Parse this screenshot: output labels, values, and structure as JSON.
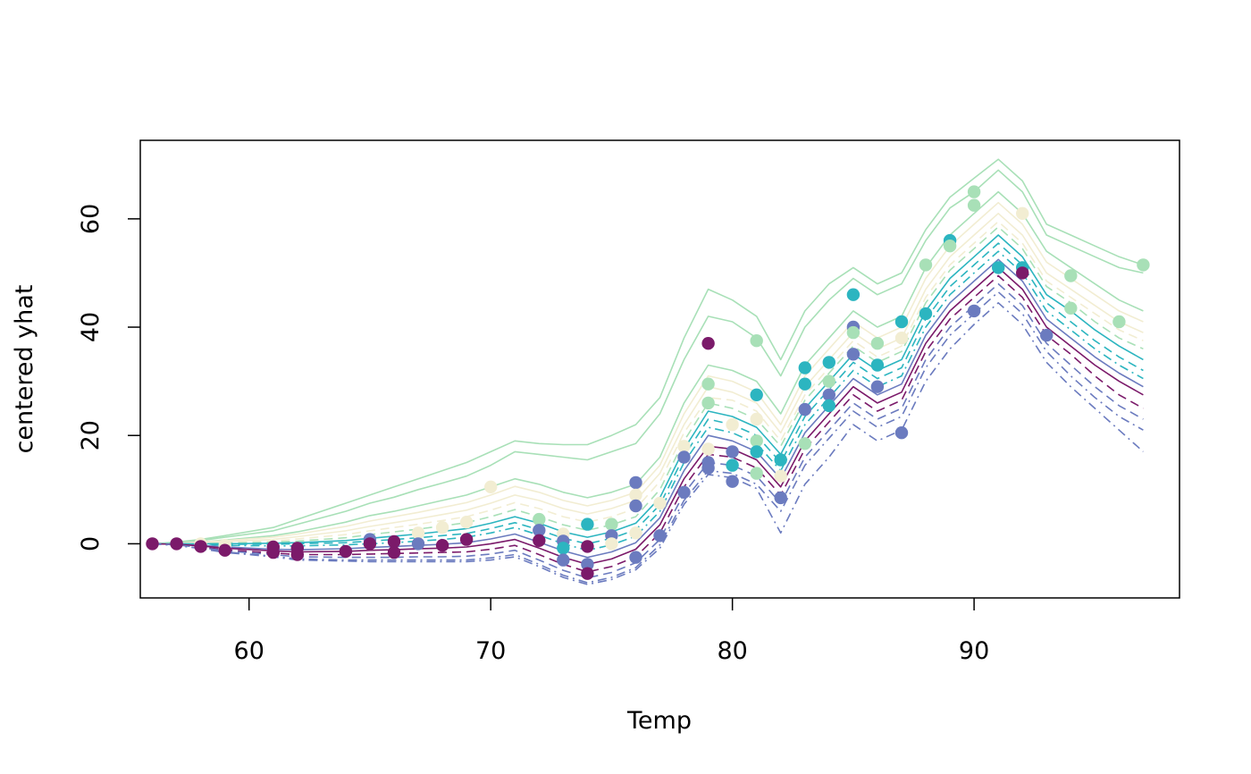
{
  "chart_data": {
    "type": "line",
    "title": "",
    "xlabel": "Temp",
    "ylabel": "centered yhat",
    "xlim": [
      55.5,
      98.5
    ],
    "ylim": [
      -10,
      74.5
    ],
    "x_ticks": [
      "60",
      "70",
      "80",
      "90"
    ],
    "x_tick_values": [
      60,
      70,
      80,
      90
    ],
    "y_ticks": [
      "0",
      "20",
      "40",
      "60"
    ],
    "y_tick_values": [
      0,
      20,
      40,
      60
    ],
    "grid": false,
    "legend": "none",
    "palette": [
      "#7B1A6A",
      "#6B7BBF",
      "#2CB5C0",
      "#A8E0B7",
      "#F2EDD2"
    ],
    "x": [
      56,
      57,
      58,
      59,
      61,
      62,
      64,
      65,
      66,
      67,
      68,
      69,
      70,
      71,
      72,
      73,
      74,
      75,
      76,
      77,
      78,
      79,
      80,
      81,
      82,
      83,
      84,
      85,
      86,
      87,
      88,
      89,
      90,
      91,
      92,
      93,
      94,
      95,
      96,
      97
    ],
    "series": [
      {
        "color": "#A8E0B7",
        "style": "solid",
        "values": [
          0,
          0.3,
          0.8,
          1.5,
          3,
          4.5,
          7.5,
          9,
          10.5,
          12,
          13.5,
          15,
          17,
          19,
          18.5,
          18.3,
          18.3,
          20,
          22,
          27,
          38,
          47,
          45,
          42,
          34,
          43,
          48,
          51,
          48,
          50,
          58,
          64,
          67.5,
          71,
          67,
          59,
          57,
          55,
          53,
          51.5
        ]
      },
      {
        "color": "#A8E0B7",
        "style": "solid",
        "values": [
          0,
          0.2,
          0.6,
          1.2,
          2.4,
          3.6,
          6,
          7.5,
          8.6,
          10,
          11.2,
          12.5,
          14.5,
          17,
          16.5,
          16,
          15.5,
          17,
          18.5,
          24,
          34,
          42,
          41,
          38,
          31,
          40,
          45,
          49,
          46,
          48,
          56,
          62,
          65,
          69,
          65,
          57,
          55,
          53,
          51,
          50
        ]
      },
      {
        "color": "#A8E0B7",
        "style": "solid",
        "values": [
          0,
          0.1,
          0.3,
          0.7,
          1.5,
          2.2,
          4,
          5.2,
          6,
          7,
          8,
          9,
          10.5,
          12,
          11,
          9.5,
          8.5,
          9.5,
          11,
          16,
          26,
          33,
          32,
          30,
          24,
          33,
          38,
          43,
          40,
          42,
          51,
          57,
          61,
          65,
          61,
          54,
          51,
          48,
          45,
          43
        ]
      },
      {
        "color": "#F2EDD2",
        "style": "solid",
        "values": [
          0,
          0.1,
          0.3,
          0.6,
          1.2,
          1.8,
          3.2,
          4.2,
          5,
          5.8,
          6.7,
          7.6,
          9,
          10.6,
          9.5,
          8,
          7,
          8,
          9.5,
          14.5,
          24,
          31,
          30,
          28,
          22,
          31,
          36,
          41,
          38,
          40,
          49,
          55,
          59,
          63,
          59,
          52,
          49,
          46,
          43,
          41
        ]
      },
      {
        "color": "#F2EDD2",
        "style": "solid",
        "values": [
          0,
          0,
          0.2,
          0.4,
          0.8,
          1.3,
          2.4,
          3.2,
          3.9,
          4.6,
          5.4,
          6.2,
          7.5,
          9,
          8,
          6.5,
          5.5,
          6.5,
          8,
          13,
          22,
          29,
          28,
          26,
          20.5,
          29,
          34,
          39,
          36,
          38,
          47,
          53,
          57,
          61,
          57,
          50,
          47,
          44,
          41,
          39
        ]
      },
      {
        "color": "#F2EDD2",
        "style": "dashed",
        "values": [
          0,
          0,
          0.1,
          0.2,
          0.5,
          0.9,
          1.7,
          2.4,
          3,
          3.6,
          4.3,
          5,
          6.2,
          7.6,
          6.5,
          5,
          4,
          5,
          6.5,
          11.5,
          20.5,
          27,
          26.5,
          24.5,
          19,
          27.5,
          32.5,
          37.5,
          34.5,
          36.5,
          45.5,
          51.5,
          55.5,
          59.5,
          55.5,
          48.5,
          45.5,
          42.5,
          39.5,
          37.5
        ]
      },
      {
        "color": "#A8E0B7",
        "style": "dashed",
        "values": [
          0,
          0,
          0,
          0.1,
          0.3,
          0.5,
          1.1,
          1.7,
          2.2,
          2.7,
          3.3,
          3.9,
          5,
          6.3,
          5,
          3.5,
          2.5,
          3.5,
          5,
          10,
          19,
          26,
          25,
          23,
          18,
          26.5,
          31.5,
          36.5,
          33.5,
          35.5,
          44.5,
          50.5,
          54.5,
          58.5,
          54.5,
          47.5,
          44.5,
          41,
          38,
          36
        ]
      },
      {
        "color": "#2CB5C0",
        "style": "solid",
        "values": [
          0,
          0,
          0,
          0,
          0.1,
          0.2,
          0.6,
          1,
          1.4,
          1.8,
          2.3,
          2.8,
          3.8,
          5,
          3.8,
          2.2,
          1.2,
          2.2,
          3.8,
          8.5,
          17.5,
          24.5,
          23.5,
          21.5,
          16.5,
          25,
          30,
          35,
          32,
          34,
          43,
          49,
          53,
          57,
          53,
          46,
          43,
          39.5,
          36.5,
          34
        ]
      },
      {
        "color": "#2CB5C0",
        "style": "dashed",
        "values": [
          0,
          0,
          -0.1,
          -0.1,
          -0.1,
          0,
          0.2,
          0.5,
          0.8,
          1.1,
          1.5,
          1.9,
          2.8,
          3.9,
          2.6,
          1,
          0,
          1,
          2.6,
          7.2,
          16.2,
          23,
          22,
          20,
          15,
          23.5,
          28.5,
          33.5,
          30.5,
          32.5,
          41.5,
          47.5,
          51.5,
          55.5,
          51.5,
          44.5,
          41,
          37.5,
          34.5,
          32
        ]
      },
      {
        "color": "#2CB5C0",
        "style": "dashdot",
        "values": [
          0,
          0,
          -0.1,
          -0.3,
          -0.4,
          -0.4,
          -0.2,
          0,
          0.2,
          0.5,
          0.8,
          1.2,
          2,
          3,
          1.6,
          0,
          -1.2,
          -0.2,
          1.4,
          6,
          15,
          21.5,
          20.5,
          18.5,
          13.5,
          22,
          27,
          32,
          29,
          31,
          40,
          46,
          50,
          54,
          50,
          43,
          39.5,
          36,
          33,
          30.5
        ]
      },
      {
        "color": "#6B7BBF",
        "style": "solid",
        "values": [
          0,
          -0.1,
          -0.3,
          -0.6,
          -1,
          -1.1,
          -0.9,
          -0.7,
          -0.5,
          -0.3,
          -0.1,
          0.2,
          0.9,
          1.8,
          0.3,
          -1.3,
          -2.5,
          -1.5,
          0.2,
          4.8,
          13.5,
          20,
          19,
          17,
          12,
          20.5,
          25.5,
          30.5,
          27.5,
          29.5,
          38.5,
          44.5,
          48.5,
          52.5,
          48.5,
          41.5,
          38,
          34.5,
          31.5,
          29
        ]
      },
      {
        "color": "#7B1A6A",
        "style": "solid",
        "values": [
          0,
          -0.1,
          -0.4,
          -0.8,
          -1.3,
          -1.5,
          -1.4,
          -1.2,
          -1.1,
          -0.9,
          -0.8,
          -0.6,
          0,
          0.8,
          -0.8,
          -2.5,
          -3.8,
          -2.8,
          -1,
          3.5,
          12,
          18,
          17.5,
          15.5,
          10.5,
          19,
          24,
          29,
          26,
          28,
          37,
          43,
          47,
          51,
          47,
          40,
          36.5,
          33,
          30,
          27.5
        ]
      },
      {
        "color": "#7B1A6A",
        "style": "dashed",
        "values": [
          0,
          -0.2,
          -0.6,
          -1.1,
          -1.7,
          -2,
          -2,
          -1.9,
          -1.8,
          -1.7,
          -1.6,
          -1.5,
          -1,
          -0.3,
          -2,
          -3.8,
          -5.2,
          -4.2,
          -2.4,
          2,
          10.5,
          16.5,
          16,
          14,
          9,
          17.5,
          22.5,
          27.5,
          24.5,
          26.5,
          35.5,
          41.5,
          45.5,
          49.5,
          45.5,
          38.5,
          35,
          31,
          27.5,
          25
        ]
      },
      {
        "color": "#6B7BBF",
        "style": "dashed",
        "values": [
          0,
          -0.2,
          -0.7,
          -1.3,
          -2,
          -2.4,
          -2.5,
          -2.5,
          -2.5,
          -2.4,
          -2.4,
          -2.3,
          -1.9,
          -1.2,
          -3,
          -4.9,
          -6.3,
          -5.3,
          -3.5,
          0.8,
          9.3,
          15,
          14.5,
          12.5,
          7.5,
          16,
          21,
          26,
          23,
          25,
          34,
          40,
          44,
          48,
          44,
          37,
          33,
          29,
          25.5,
          23
        ]
      },
      {
        "color": "#6B7BBF",
        "style": "dashdot",
        "values": [
          0,
          -0.3,
          -0.8,
          -1.5,
          -2.3,
          -2.8,
          -3,
          -3,
          -3,
          -3,
          -3,
          -3,
          -2.6,
          -2,
          -3.8,
          -5.8,
          -7.2,
          -6.2,
          -4.4,
          -0.2,
          8,
          13.5,
          13,
          11,
          6,
          14.5,
          19.5,
          24.5,
          21.5,
          23.5,
          32.5,
          38.5,
          42.5,
          46.5,
          42.5,
          35.5,
          31,
          27,
          23.5,
          21
        ]
      },
      {
        "color": "#6B7BBF",
        "style": "dashdot",
        "values": [
          0,
          -0.3,
          -0.9,
          -1.6,
          -2.4,
          -3,
          -3.2,
          -3.3,
          -3.3,
          -3.3,
          -3.3,
          -3.3,
          -3,
          -2.4,
          -4.2,
          -6.2,
          -7.5,
          -6.6,
          -4.8,
          -0.8,
          7.3,
          12.8,
          12.2,
          10.2,
          2,
          11,
          16,
          22,
          19,
          21,
          30,
          36,
          40.5,
          44.5,
          40.5,
          33.5,
          29,
          25,
          21,
          17
        ]
      }
    ],
    "points": [
      {
        "x": 56,
        "y": 0,
        "color": "#7B1A6A"
      },
      {
        "x": 57,
        "y": 0,
        "color": "#7B1A6A"
      },
      {
        "x": 58,
        "y": 0,
        "color": "#F2EDD2"
      },
      {
        "x": 58,
        "y": -0.5,
        "color": "#7B1A6A"
      },
      {
        "x": 59,
        "y": -0.3,
        "color": "#F2EDD2"
      },
      {
        "x": 59,
        "y": -1.2,
        "color": "#7B1A6A"
      },
      {
        "x": 61,
        "y": -0.6,
        "color": "#7B1A6A"
      },
      {
        "x": 61,
        "y": -1.6,
        "color": "#7B1A6A"
      },
      {
        "x": 62,
        "y": -0.8,
        "color": "#7B1A6A"
      },
      {
        "x": 62,
        "y": -2,
        "color": "#7B1A6A"
      },
      {
        "x": 64,
        "y": -1.4,
        "color": "#7B1A6A"
      },
      {
        "x": 65,
        "y": 0.8,
        "color": "#6B7BBF"
      },
      {
        "x": 65,
        "y": 0,
        "color": "#7B1A6A"
      },
      {
        "x": 66,
        "y": 0.4,
        "color": "#7B1A6A"
      },
      {
        "x": 66,
        "y": -1.6,
        "color": "#7B1A6A"
      },
      {
        "x": 67,
        "y": 2,
        "color": "#F2EDD2"
      },
      {
        "x": 67,
        "y": 0,
        "color": "#6B7BBF"
      },
      {
        "x": 68,
        "y": 3,
        "color": "#F2EDD2"
      },
      {
        "x": 68,
        "y": -0.3,
        "color": "#7B1A6A"
      },
      {
        "x": 69,
        "y": 0.8,
        "color": "#7B1A6A"
      },
      {
        "x": 69,
        "y": 4,
        "color": "#F2EDD2"
      },
      {
        "x": 70,
        "y": 10.5,
        "color": "#F2EDD2"
      },
      {
        "x": 72,
        "y": 4.5,
        "color": "#A8E0B7"
      },
      {
        "x": 72,
        "y": 2.5,
        "color": "#6B7BBF"
      },
      {
        "x": 72,
        "y": 0.6,
        "color": "#7B1A6A"
      },
      {
        "x": 73,
        "y": 1.8,
        "color": "#F2EDD2"
      },
      {
        "x": 73,
        "y": 0.5,
        "color": "#6B7BBF"
      },
      {
        "x": 73,
        "y": -0.8,
        "color": "#2CB5C0"
      },
      {
        "x": 73,
        "y": -3,
        "color": "#6B7BBF"
      },
      {
        "x": 74,
        "y": 3.6,
        "color": "#2CB5C0"
      },
      {
        "x": 74,
        "y": -0.5,
        "color": "#7B1A6A"
      },
      {
        "x": 74,
        "y": -3.8,
        "color": "#6B7BBF"
      },
      {
        "x": 74,
        "y": -5.5,
        "color": "#7B1A6A"
      },
      {
        "x": 75,
        "y": 3.6,
        "color": "#A8E0B7"
      },
      {
        "x": 75,
        "y": 1.5,
        "color": "#6B7BBF"
      },
      {
        "x": 75,
        "y": 0,
        "color": "#F2EDD2"
      },
      {
        "x": 76,
        "y": 11.3,
        "color": "#6B7BBF"
      },
      {
        "x": 76,
        "y": 9,
        "color": "#F2EDD2"
      },
      {
        "x": 76,
        "y": 7,
        "color": "#6B7BBF"
      },
      {
        "x": 76,
        "y": 2,
        "color": "#F2EDD2"
      },
      {
        "x": 76,
        "y": -2.5,
        "color": "#6B7BBF"
      },
      {
        "x": 77,
        "y": 7.5,
        "color": "#F2EDD2"
      },
      {
        "x": 77,
        "y": 1.5,
        "color": "#6B7BBF"
      },
      {
        "x": 78,
        "y": 18,
        "color": "#F2EDD2"
      },
      {
        "x": 78,
        "y": 16,
        "color": "#6B7BBF"
      },
      {
        "x": 78,
        "y": 9.5,
        "color": "#6B7BBF"
      },
      {
        "x": 79,
        "y": 37,
        "color": "#7B1A6A"
      },
      {
        "x": 79,
        "y": 29.5,
        "color": "#A8E0B7"
      },
      {
        "x": 79,
        "y": 26,
        "color": "#A8E0B7"
      },
      {
        "x": 79,
        "y": 17.5,
        "color": "#F2EDD2"
      },
      {
        "x": 79,
        "y": 15,
        "color": "#6B7BBF"
      },
      {
        "x": 79,
        "y": 14,
        "color": "#6B7BBF"
      },
      {
        "x": 80,
        "y": 22,
        "color": "#F2EDD2"
      },
      {
        "x": 80,
        "y": 17,
        "color": "#6B7BBF"
      },
      {
        "x": 80,
        "y": 14.5,
        "color": "#2CB5C0"
      },
      {
        "x": 80,
        "y": 11.5,
        "color": "#6B7BBF"
      },
      {
        "x": 81,
        "y": 37.5,
        "color": "#A8E0B7"
      },
      {
        "x": 81,
        "y": 27.5,
        "color": "#2CB5C0"
      },
      {
        "x": 81,
        "y": 23,
        "color": "#F2EDD2"
      },
      {
        "x": 81,
        "y": 19,
        "color": "#A8E0B7"
      },
      {
        "x": 81,
        "y": 17,
        "color": "#2CB5C0"
      },
      {
        "x": 81,
        "y": 13,
        "color": "#A8E0B7"
      },
      {
        "x": 82,
        "y": 15.5,
        "color": "#2CB5C0"
      },
      {
        "x": 82,
        "y": 12.5,
        "color": "#F2EDD2"
      },
      {
        "x": 82,
        "y": 8.5,
        "color": "#6B7BBF"
      },
      {
        "x": 83,
        "y": 32.5,
        "color": "#2CB5C0"
      },
      {
        "x": 83,
        "y": 29.5,
        "color": "#2CB5C0"
      },
      {
        "x": 83,
        "y": 24.8,
        "color": "#6B7BBF"
      },
      {
        "x": 83,
        "y": 18.5,
        "color": "#A8E0B7"
      },
      {
        "x": 84,
        "y": 33.5,
        "color": "#2CB5C0"
      },
      {
        "x": 84,
        "y": 30,
        "color": "#A8E0B7"
      },
      {
        "x": 84,
        "y": 27.5,
        "color": "#6B7BBF"
      },
      {
        "x": 84,
        "y": 25.5,
        "color": "#2CB5C0"
      },
      {
        "x": 85,
        "y": 46,
        "color": "#2CB5C0"
      },
      {
        "x": 85,
        "y": 40,
        "color": "#6B7BBF"
      },
      {
        "x": 85,
        "y": 39,
        "color": "#A8E0B7"
      },
      {
        "x": 85,
        "y": 35,
        "color": "#6B7BBF"
      },
      {
        "x": 86,
        "y": 37,
        "color": "#A8E0B7"
      },
      {
        "x": 86,
        "y": 33,
        "color": "#2CB5C0"
      },
      {
        "x": 86,
        "y": 29,
        "color": "#6B7BBF"
      },
      {
        "x": 87,
        "y": 41,
        "color": "#2CB5C0"
      },
      {
        "x": 87,
        "y": 38,
        "color": "#F2EDD2"
      },
      {
        "x": 87,
        "y": 20.5,
        "color": "#6B7BBF"
      },
      {
        "x": 88,
        "y": 51.5,
        "color": "#A8E0B7"
      },
      {
        "x": 88,
        "y": 42.5,
        "color": "#2CB5C0"
      },
      {
        "x": 89,
        "y": 56,
        "color": "#2CB5C0"
      },
      {
        "x": 89,
        "y": 55,
        "color": "#A8E0B7"
      },
      {
        "x": 90,
        "y": 65,
        "color": "#A8E0B7"
      },
      {
        "x": 90,
        "y": 62.5,
        "color": "#A8E0B7"
      },
      {
        "x": 90,
        "y": 43,
        "color": "#6B7BBF"
      },
      {
        "x": 91,
        "y": 51,
        "color": "#2CB5C0"
      },
      {
        "x": 92,
        "y": 61,
        "color": "#F2EDD2"
      },
      {
        "x": 92,
        "y": 51,
        "color": "#2CB5C0"
      },
      {
        "x": 92,
        "y": 50,
        "color": "#7B1A6A"
      },
      {
        "x": 93,
        "y": 38.5,
        "color": "#6B7BBF"
      },
      {
        "x": 94,
        "y": 49.5,
        "color": "#A8E0B7"
      },
      {
        "x": 94,
        "y": 43.5,
        "color": "#A8E0B7"
      },
      {
        "x": 96,
        "y": 41,
        "color": "#A8E0B7"
      },
      {
        "x": 97,
        "y": 51.5,
        "color": "#A8E0B7"
      }
    ]
  }
}
